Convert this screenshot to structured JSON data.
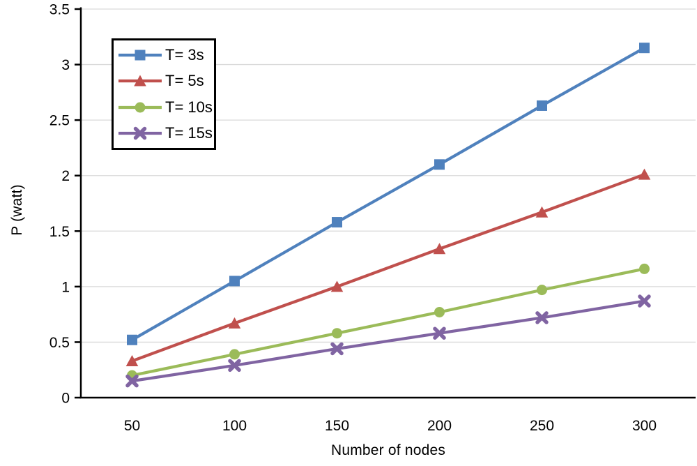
{
  "chart_data": {
    "type": "line",
    "title": "",
    "xlabel": "Number of nodes",
    "ylabel": "P (watt)",
    "x": [
      50,
      100,
      150,
      200,
      250,
      300
    ],
    "xlim_categories": true,
    "ylim": [
      0,
      3.5
    ],
    "ytick_step": 0.5,
    "ytick_labels": [
      "0",
      "0.5",
      "1",
      "1.5",
      "2",
      "2.5",
      "3",
      "3.5"
    ],
    "grid": true,
    "legend_position": "inside-top-left",
    "series": [
      {
        "name": "T= 3s",
        "marker": "square",
        "color": "#4F81BD",
        "values": [
          0.52,
          1.05,
          1.58,
          2.1,
          2.63,
          3.15
        ]
      },
      {
        "name": "T= 5s",
        "marker": "triangle",
        "color": "#C0504D",
        "values": [
          0.33,
          0.67,
          1.0,
          1.34,
          1.67,
          2.01
        ]
      },
      {
        "name": "T= 10s",
        "marker": "circle",
        "color": "#9BBB59",
        "values": [
          0.2,
          0.39,
          0.58,
          0.77,
          0.97,
          1.16
        ]
      },
      {
        "name": "T= 15s",
        "marker": "x",
        "color": "#8064A2",
        "values": [
          0.15,
          0.29,
          0.44,
          0.58,
          0.72,
          0.87
        ]
      }
    ],
    "colors": {
      "gridline": "#D9D9D9",
      "axis": "#000000",
      "tick_label": "#000000",
      "background": "#FFFFFF"
    }
  }
}
